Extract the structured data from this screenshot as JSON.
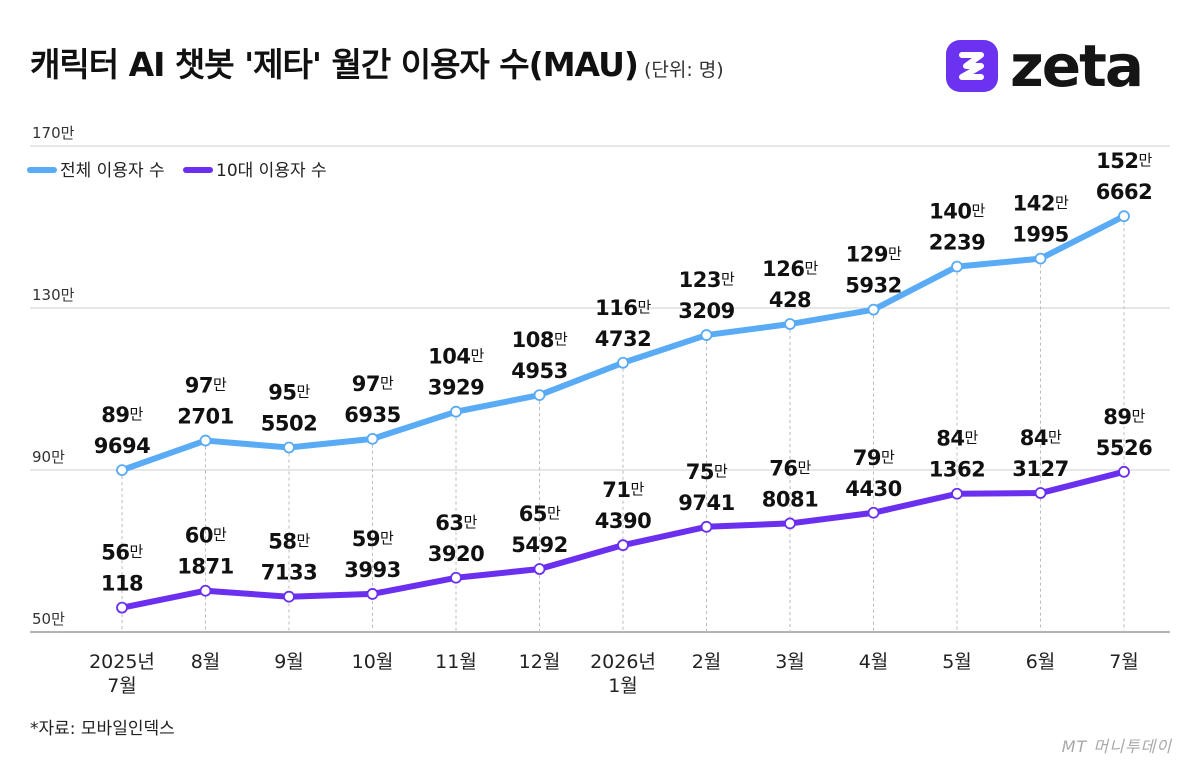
{
  "header": {
    "title": "캐릭터 AI 챗봇 '제타' 월간 이용자 수(MAU)",
    "unit": "(단위: 명)"
  },
  "logo": {
    "text": "zeta",
    "icon": "zeta-logo-icon",
    "color": "#6b33f0"
  },
  "footer": {
    "source": "*자료: 모바일인덱스",
    "credit": "MT 머니투데이"
  },
  "chart_data": {
    "type": "line",
    "title": "캐릭터 AI 챗봇 '제타' 월간 이용자 수(MAU)",
    "unit_label": "(단위: 명)",
    "categories": [
      [
        "2025년",
        "7월"
      ],
      [
        "8월"
      ],
      [
        "9월"
      ],
      [
        "10월"
      ],
      [
        "11월"
      ],
      [
        "12월"
      ],
      [
        "2026년",
        "1월"
      ],
      [
        "2월"
      ],
      [
        "3월"
      ],
      [
        "4월"
      ],
      [
        "5월"
      ],
      [
        "6월"
      ],
      [
        "7월"
      ]
    ],
    "y_ticks": [
      {
        "value": 500000,
        "label": "50만"
      },
      {
        "value": 900000,
        "label": "90만"
      },
      {
        "value": 1300000,
        "label": "130만"
      },
      {
        "value": 1700000,
        "label": "170만"
      }
    ],
    "ylim": [
      500000,
      1700000
    ],
    "legend_position": "top-left",
    "grid": true,
    "series": [
      {
        "name": "전체 이용자 수",
        "color": "#5aabf5",
        "values": [
          899694,
          972701,
          955502,
          976935,
          1043929,
          1084953,
          1164732,
          1233209,
          1260428,
          1295932,
          1402239,
          1421995,
          1526662
        ],
        "labels": [
          [
            "89만",
            "9694"
          ],
          [
            "97만",
            "2701"
          ],
          [
            "95만",
            "5502"
          ],
          [
            "97만",
            "6935"
          ],
          [
            "104만",
            "3929"
          ],
          [
            "108만",
            "4953"
          ],
          [
            "116만",
            "4732"
          ],
          [
            "123만",
            "3209"
          ],
          [
            "126만",
            "428"
          ],
          [
            "129만",
            "5932"
          ],
          [
            "140만",
            "2239"
          ],
          [
            "142만",
            "1995"
          ],
          [
            "152만",
            "6662"
          ]
        ]
      },
      {
        "name": "10대 이용자 수",
        "color": "#6b2ff0",
        "values": [
          560118,
          601871,
          587133,
          593993,
          633920,
          655492,
          714390,
          759741,
          768081,
          794430,
          841362,
          843127,
          895526
        ],
        "labels": [
          [
            "56만",
            "118"
          ],
          [
            "60만",
            "1871"
          ],
          [
            "58만",
            "7133"
          ],
          [
            "59만",
            "3993"
          ],
          [
            "63만",
            "3920"
          ],
          [
            "65만",
            "5492"
          ],
          [
            "71만",
            "4390"
          ],
          [
            "75만",
            "9741"
          ],
          [
            "76만",
            "8081"
          ],
          [
            "79만",
            "4430"
          ],
          [
            "84만",
            "1362"
          ],
          [
            "84만",
            "3127"
          ],
          [
            "89만",
            "5526"
          ]
        ]
      }
    ]
  }
}
